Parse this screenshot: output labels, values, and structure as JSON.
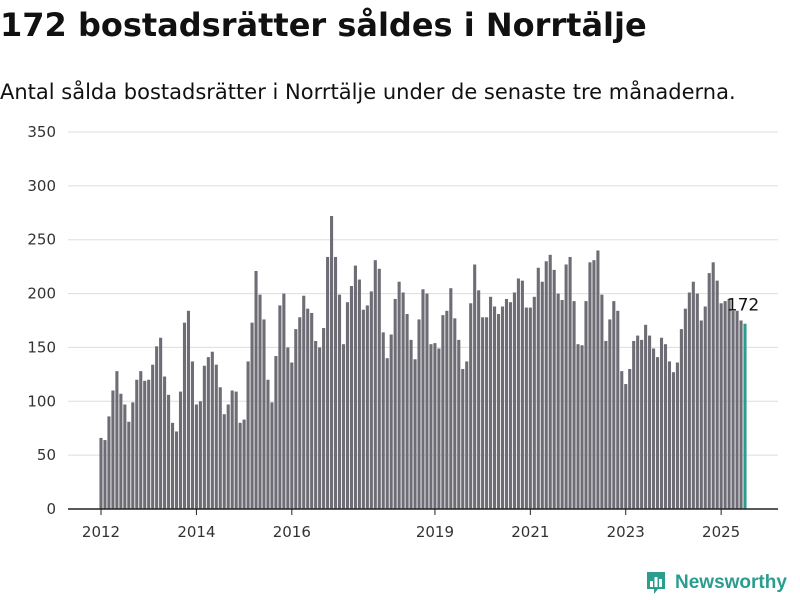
{
  "header": {
    "title": "172 bostadsrätter såldes i Norrtälje",
    "subtitle": "Antal sålda bostadsrätter i Norrtälje under de senaste tre månaderna."
  },
  "brand": {
    "name": "Newsworthy"
  },
  "colors": {
    "bar": "#6e6c74",
    "highlight": "#2a9d8f",
    "grid": "#dddddd",
    "axis": "#222222"
  },
  "chart_data": {
    "type": "bar",
    "title": "172 bostadsrätter såldes i Norrtälje",
    "subtitle": "Antal sålda bostadsrätter i Norrtälje under de senaste tre månaderna.",
    "xlabel": "",
    "ylabel": "",
    "ylim": [
      0,
      350
    ],
    "yticks": [
      0,
      50,
      100,
      150,
      200,
      250,
      300,
      350
    ],
    "grid": true,
    "x_start": "2012-01",
    "x_end": "2025-09",
    "xticks": [
      {
        "label": "2012",
        "x": "2012-01"
      },
      {
        "label": "2014",
        "x": "2014-01"
      },
      {
        "label": "2016",
        "x": "2016-01"
      },
      {
        "label": "2019",
        "x": "2019-01"
      },
      {
        "label": "2021",
        "x": "2021-01"
      },
      {
        "label": "2023",
        "x": "2023-01"
      },
      {
        "label": "2025",
        "x": "2025-01"
      }
    ],
    "highlight_label": "172",
    "values": [
      66,
      64,
      86,
      110,
      128,
      107,
      97,
      81,
      99,
      120,
      128,
      119,
      120,
      134,
      151,
      159,
      123,
      106,
      80,
      72,
      109,
      173,
      184,
      137,
      97,
      100,
      133,
      141,
      146,
      134,
      113,
      88,
      97,
      110,
      109,
      80,
      83,
      137,
      173,
      221,
      199,
      176,
      120,
      99,
      142,
      189,
      200,
      150,
      136,
      167,
      178,
      198,
      186,
      182,
      156,
      150,
      168,
      234,
      272,
      234,
      199,
      153,
      192,
      207,
      226,
      213,
      185,
      189,
      202,
      231,
      223,
      164,
      140,
      162,
      195,
      211,
      201,
      181,
      157,
      139,
      176,
      204,
      200,
      153,
      154,
      149,
      180,
      184,
      205,
      177,
      157,
      130,
      137,
      191,
      227,
      203,
      178,
      178,
      197,
      188,
      181,
      188,
      195,
      192,
      201,
      214,
      212,
      187,
      187,
      197,
      224,
      211,
      230,
      236,
      222,
      200,
      194,
      227,
      234,
      193,
      153,
      152,
      193,
      229,
      231,
      240,
      199,
      156,
      176,
      193,
      184,
      128,
      116,
      130,
      156,
      161,
      157,
      171,
      161,
      149,
      141,
      159,
      153,
      137,
      127,
      136,
      167,
      186,
      201,
      211,
      200,
      175,
      188,
      219,
      229,
      212,
      191,
      193,
      195,
      184,
      184,
      175,
      172
    ]
  }
}
